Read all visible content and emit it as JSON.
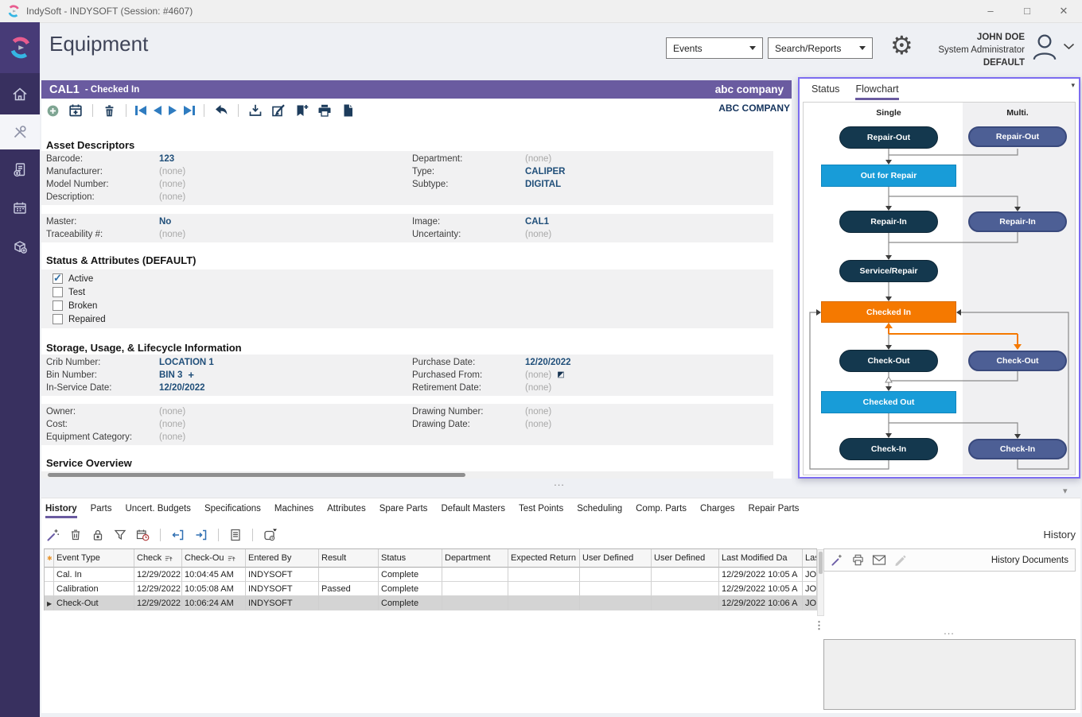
{
  "window": {
    "title": "IndySoft - INDYSOFT (Session: #4607)",
    "minimize": "–",
    "maximize": "□",
    "close": "✕"
  },
  "icons": {
    "app_logo": "indysoft-c-mark",
    "home": "house",
    "equipment": "crossed-tools",
    "billing": "invoice-dollar",
    "calendar": "calendar-grid",
    "inventory": "box-plus",
    "add": "⊕",
    "schedule_event": "calendar-plus",
    "delete": "trash",
    "undo": "curved-left-arrow",
    "import": "tray-down-arrow",
    "edit": "pencil-square",
    "bookmark_add": "bookmark-plus",
    "print": "printer",
    "document": "page",
    "gear": "⚙",
    "avatar": "person-outline",
    "chevron": "chevron-down",
    "wand": "magic-wand",
    "lock": "padlock",
    "filter": "funnel",
    "cal_clock": "calendar-clock",
    "check_out_arrow": "arrow-left-box",
    "check_in_arrow": "arrow-right-box",
    "details": "list-page",
    "cal_menu": "calendar-menu",
    "email": "envelope",
    "annotate": "pencil-muted",
    "sort": "sort-bars-up",
    "header_marker": "✱",
    "row_marker": "▶",
    "plus": "+",
    "jump": "◩",
    "check": "✓",
    "collapse": "▾",
    "dots_h": "...",
    "dots_v": "⋮"
  },
  "header": {
    "title": "Equipment",
    "events_label": "Events",
    "search_label": "Search/Reports",
    "user_name": "JOHN DOE",
    "user_role": "System Administrator",
    "user_site": "DEFAULT"
  },
  "banner": {
    "asset": "CAL1",
    "status": "- Checked In",
    "company": "abc company"
  },
  "company_link": "ABC COMPANY",
  "sections": {
    "asset_descriptors": {
      "title": "Asset Descriptors",
      "groups": [
        {
          "rows": [
            {
              "left": {
                "label": "Barcode:",
                "value": "123",
                "kind": "link"
              },
              "right": {
                "label": "Department:",
                "value": "(none)",
                "kind": "none"
              }
            },
            {
              "left": {
                "label": "Manufacturer:",
                "value": "(none)",
                "kind": "none"
              },
              "right": {
                "label": "Type:",
                "value": "CALIPER",
                "kind": "link"
              }
            },
            {
              "left": {
                "label": "Model Number:",
                "value": "(none)",
                "kind": "none"
              },
              "right": {
                "label": "Subtype:",
                "value": "DIGITAL",
                "kind": "link"
              }
            },
            {
              "left": {
                "label": "Description:",
                "value": "(none)",
                "kind": "none"
              },
              "right": null
            }
          ]
        },
        {
          "rows": [
            {
              "left": {
                "label": "Master:",
                "value": "No",
                "kind": "link"
              },
              "right": {
                "label": "Image:",
                "value": "CAL1",
                "kind": "link"
              }
            },
            {
              "left": {
                "label": "Traceability #:",
                "value": "(none)",
                "kind": "none"
              },
              "right": {
                "label": "Uncertainty:",
                "value": "(none)",
                "kind": "none"
              }
            }
          ]
        }
      ]
    },
    "status_attributes": {
      "title": "Status & Attributes (DEFAULT)",
      "items": [
        {
          "label": "Active",
          "checked": true
        },
        {
          "label": "Test",
          "checked": false
        },
        {
          "label": "Broken",
          "checked": false
        },
        {
          "label": "Repaired",
          "checked": false
        }
      ]
    },
    "storage": {
      "title": "Storage, Usage, & Lifecycle Information",
      "groups": [
        {
          "rows": [
            {
              "left": {
                "label": "Crib Number:",
                "value": "LOCATION 1",
                "kind": "link"
              },
              "right": {
                "label": "Purchase Date:",
                "value": "12/20/2022",
                "kind": "link"
              }
            },
            {
              "left": {
                "label": "Bin Number:",
                "value": "BIN 3",
                "kind": "link",
                "extra": "plus"
              },
              "right": {
                "label": "Purchased From:",
                "value": "(none)",
                "kind": "none",
                "extra": "jump"
              }
            },
            {
              "left": {
                "label": "In-Service Date:",
                "value": "12/20/2022",
                "kind": "link"
              },
              "right": {
                "label": "Retirement Date:",
                "value": "(none)",
                "kind": "none"
              }
            }
          ]
        },
        {
          "rows": [
            {
              "left": {
                "label": "Owner:",
                "value": "(none)",
                "kind": "none"
              },
              "right": {
                "label": "Drawing Number:",
                "value": "(none)",
                "kind": "none"
              }
            },
            {
              "left": {
                "label": "Cost:",
                "value": "(none)",
                "kind": "none"
              },
              "right": {
                "label": "Drawing Date:",
                "value": "(none)",
                "kind": "none"
              }
            },
            {
              "left": {
                "label": "Equipment Category:",
                "value": "(none)",
                "kind": "none"
              },
              "right": null
            }
          ]
        }
      ]
    },
    "service_overview": {
      "title": "Service Overview"
    }
  },
  "flowchart": {
    "tabs": [
      {
        "label": "Status",
        "active": false
      },
      {
        "label": "Flowchart",
        "active": true
      }
    ],
    "columns": {
      "single": "Single",
      "multi": "Multi."
    },
    "colors": {
      "dark": "#14384e",
      "multi": "#4d5f95",
      "status": "#189cd8",
      "current": "#f57900",
      "panel_border": "#7c6cf0",
      "accent": "#6a5ba0",
      "link": "#1f4e79"
    },
    "nodes": [
      {
        "id": "single-repair-out",
        "label": "Repair-Out",
        "style": "dark"
      },
      {
        "id": "multi-repair-out",
        "label": "Repair-Out",
        "style": "multi"
      },
      {
        "id": "out-for-repair",
        "label": "Out for Repair",
        "style": "status"
      },
      {
        "id": "single-repair-in",
        "label": "Repair-In",
        "style": "dark"
      },
      {
        "id": "multi-repair-in",
        "label": "Repair-In",
        "style": "multi"
      },
      {
        "id": "service-repair",
        "label": "Service/Repair",
        "style": "dark"
      },
      {
        "id": "checked-in",
        "label": "Checked In",
        "style": "current"
      },
      {
        "id": "single-check-out",
        "label": "Check-Out",
        "style": "dark"
      },
      {
        "id": "multi-check-out",
        "label": "Check-Out",
        "style": "multi"
      },
      {
        "id": "checked-out",
        "label": "Checked Out",
        "style": "status"
      },
      {
        "id": "single-check-in",
        "label": "Check-In",
        "style": "dark"
      },
      {
        "id": "multi-check-in",
        "label": "Check-In",
        "style": "multi"
      }
    ]
  },
  "bottom": {
    "tabs": [
      {
        "label": "History",
        "active": true
      },
      {
        "label": "Parts"
      },
      {
        "label": "Uncert. Budgets"
      },
      {
        "label": "Specifications"
      },
      {
        "label": "Machines"
      },
      {
        "label": "Attributes"
      },
      {
        "label": "Spare Parts"
      },
      {
        "label": "Default Masters"
      },
      {
        "label": "Test Points"
      },
      {
        "label": "Scheduling"
      },
      {
        "label": "Comp. Parts"
      },
      {
        "label": "Charges"
      },
      {
        "label": "Repair Parts"
      }
    ],
    "table": {
      "columns": [
        {
          "label": "Event Type"
        },
        {
          "label": "Check",
          "sort": true
        },
        {
          "label": "Check-Ou",
          "sort": true
        },
        {
          "label": "Entered By"
        },
        {
          "label": "Result"
        },
        {
          "label": "Status"
        },
        {
          "label": "Department"
        },
        {
          "label": "Expected Return"
        },
        {
          "label": "User Defined"
        },
        {
          "label": "User Defined"
        },
        {
          "label": "Last Modified Da"
        },
        {
          "label": "Las"
        }
      ],
      "rows": [
        {
          "selected": false,
          "cells": [
            "Cal. In",
            "12/29/2022",
            "10:04:45 AM",
            "INDYSOFT",
            "",
            "Complete",
            "",
            "",
            "",
            "",
            "12/29/2022 10:05 A",
            "JOH"
          ]
        },
        {
          "selected": false,
          "cells": [
            "Calibration",
            "12/29/2022",
            "10:05:08 AM",
            "INDYSOFT",
            "Passed",
            "Complete",
            "",
            "",
            "",
            "",
            "12/29/2022 10:05 A",
            "JOH"
          ]
        },
        {
          "selected": true,
          "cells": [
            "Check-Out",
            "12/29/2022",
            "10:06:24 AM",
            "INDYSOFT",
            "",
            "Complete",
            "",
            "",
            "",
            "",
            "12/29/2022 10:06 A",
            "JOH"
          ]
        }
      ]
    },
    "history_panel": {
      "title": "History",
      "documents_label": "History Documents"
    }
  }
}
